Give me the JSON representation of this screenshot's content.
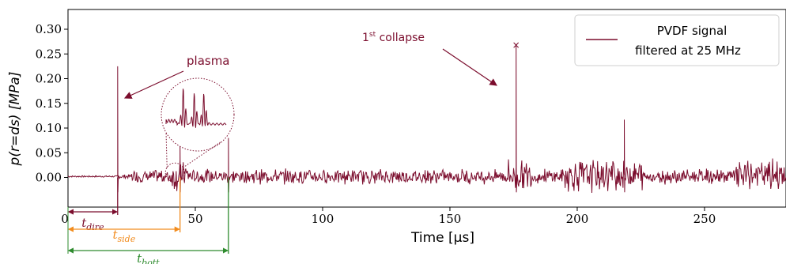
{
  "chart_data": {
    "type": "line",
    "title": "",
    "xlabel": "Time [µs]",
    "ylabel": "p(r=ds) [MPa]",
    "xlim": [
      0,
      282
    ],
    "ylim": [
      -0.06,
      0.34
    ],
    "x_ticks": [
      0,
      50,
      100,
      150,
      200,
      250
    ],
    "x_tick_labels": [
      "0",
      "50",
      "100",
      "150",
      "200",
      "250"
    ],
    "y_ticks": [
      0.0,
      0.05,
      0.1,
      0.15,
      0.2,
      0.25,
      0.3
    ],
    "y_tick_labels": [
      "0.00",
      "0.05",
      "0.10",
      "0.15",
      "0.20",
      "0.25",
      "0.30"
    ],
    "grid": false,
    "legend": {
      "location": "top-right",
      "line1": "PVDF signal",
      "line2": "filtered at 25 MHz"
    },
    "series": [
      {
        "name": "PVDF signal filtered at 25 MHz",
        "color": "#7b0d2d",
        "peaks": [
          {
            "x": 19.5,
            "y": 0.225
          },
          {
            "x": 44.0,
            "y": 0.07
          },
          {
            "x": 63.0,
            "y": 0.08
          },
          {
            "x": 176.0,
            "y": 0.27
          },
          {
            "x": 218.5,
            "y": 0.117
          }
        ],
        "baseline_noise": 0.012
      }
    ],
    "annotations": {
      "plasma": "plasma",
      "collapse_prefix": "1",
      "collapse_sup": "st",
      "collapse_suffix": " collapse",
      "collapse_marker": "×",
      "t_dire": {
        "label": "t",
        "sub": "dire",
        "x_end": 19.5,
        "color": "#7b0d2d"
      },
      "t_side": {
        "label": "t",
        "sub": "side",
        "x_end": 44.0,
        "color": "#f28c1e"
      },
      "t_bott": {
        "label": "t",
        "sub": "bott",
        "x_end": 63.0,
        "color": "#2e8b2e"
      }
    }
  }
}
